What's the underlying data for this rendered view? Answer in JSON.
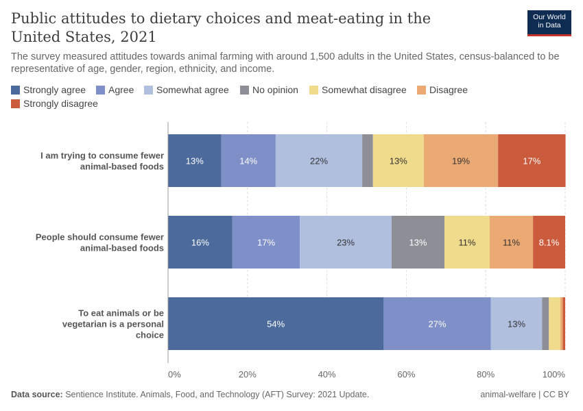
{
  "header": {
    "title": "Public attitudes to dietary choices and meat-eating in the United States, 2021",
    "subtitle": "The survey measured attitudes towards animal farming with around 1,500 adults in the United States, census-balanced to be representative of age, gender, region, ethnicity, and income.",
    "logo_line1": "Our World",
    "logo_line2": "in Data"
  },
  "footer": {
    "source_label": "Data source:",
    "source_text": "Sentience Institute. Animals, Food, and Technology (AFT) Survey: 2021 Update.",
    "license": "animal-welfare | CC BY"
  },
  "chart_data": {
    "type": "bar",
    "orientation": "horizontal",
    "stacked": true,
    "xlim": [
      0,
      100
    ],
    "x_unit": "%",
    "x_ticks": [
      "0%",
      "20%",
      "40%",
      "60%",
      "80%",
      "100%"
    ],
    "grid": true,
    "legend_position": "top",
    "categories": [
      "I am trying to consume fewer animal-based foods",
      "People should consume fewer animal-based foods",
      "To eat animals or be vegetarian is a personal choice"
    ],
    "series": [
      {
        "name": "Strongly agree",
        "color": "#4c6a9c",
        "values": [
          13.4,
          16.2,
          54.3
        ],
        "labels": [
          "13%",
          "16%",
          "54%"
        ]
      },
      {
        "name": "Agree",
        "color": "#7f8fc7",
        "values": [
          13.7,
          17.0,
          27.0
        ],
        "labels": [
          "14%",
          "17%",
          "27%"
        ]
      },
      {
        "name": "Somewhat agree",
        "color": "#b1bfdf",
        "values": [
          21.8,
          23.1,
          12.9
        ],
        "labels": [
          "22%",
          "23%",
          "13%"
        ]
      },
      {
        "name": "No opinion",
        "color": "#8e8e96",
        "values": [
          2.7,
          13.3,
          1.7
        ],
        "labels": [
          "",
          "13%",
          ""
        ]
      },
      {
        "name": "Somewhat disagree",
        "color": "#efdb8b",
        "values": [
          12.8,
          11.4,
          2.9
        ],
        "labels": [
          "13%",
          "11%",
          ""
        ]
      },
      {
        "name": "Disagree",
        "color": "#eba973",
        "values": [
          18.7,
          10.9,
          0.6
        ],
        "labels": [
          "19%",
          "11%",
          ""
        ]
      },
      {
        "name": "Strongly disagree",
        "color": "#cb5b3d",
        "values": [
          17.0,
          8.1,
          0.6
        ],
        "labels": [
          "17%",
          "8.1%",
          ""
        ]
      }
    ]
  }
}
